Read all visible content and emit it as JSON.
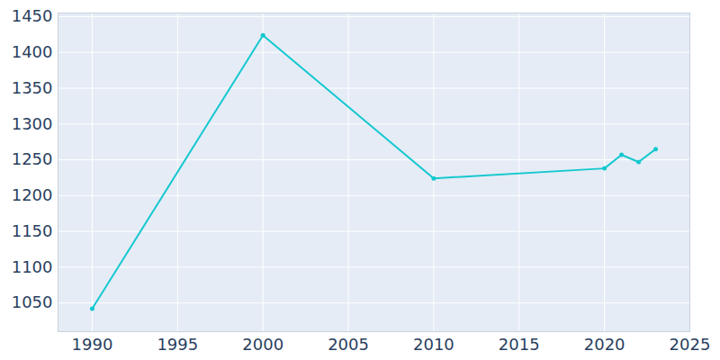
{
  "chart_data": {
    "type": "line",
    "x": [
      1990,
      2000,
      2010,
      2020,
      2021,
      2022,
      2023
    ],
    "values": [
      1042,
      1424,
      1224,
      1238,
      1257,
      1247,
      1265
    ],
    "color": "#14c8cf",
    "marker": "circle",
    "xlim": [
      1988,
      2025
    ],
    "ylim": [
      1010,
      1455
    ],
    "xticks": [
      1990,
      1995,
      2000,
      2005,
      2010,
      2015,
      2020,
      2025
    ],
    "yticks": [
      1050,
      1100,
      1150,
      1200,
      1250,
      1300,
      1350,
      1400,
      1450
    ],
    "grid": true
  }
}
